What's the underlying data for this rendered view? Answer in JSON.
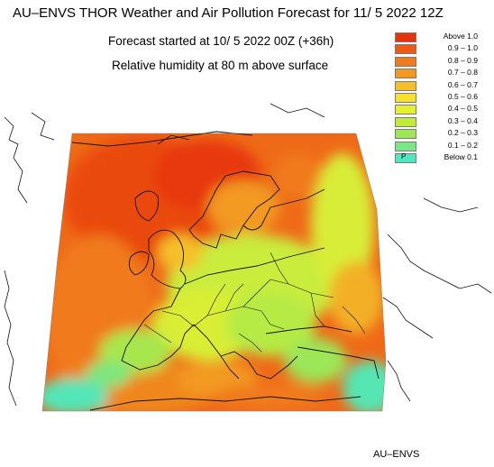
{
  "title": "AU–ENVS THOR Weather and Air Pollution Forecast for 11/ 5 2022  12Z",
  "subtitle_forecast": "Forecast started at 10/ 5 2022  00Z (+36h)",
  "subtitle_variable": "Relative humidity at 80 m above surface",
  "legend": [
    {
      "label": "Above   1.0",
      "color": "#e8320a"
    },
    {
      "label": "0.9 – 1.0",
      "color": "#ee5a14"
    },
    {
      "label": "0.8 – 0.9",
      "color": "#f07a1c"
    },
    {
      "label": "0.7 – 0.8",
      "color": "#f29a20"
    },
    {
      "label": "0.6 – 0.7",
      "color": "#f5bf2a"
    },
    {
      "label": "0.5 – 0.6",
      "color": "#f7e12c"
    },
    {
      "label": "0.4 – 0.5",
      "color": "#e6f02e"
    },
    {
      "label": "0.3 – 0.4",
      "color": "#c3ec3a"
    },
    {
      "label": "0.2 – 0.3",
      "color": "#9fe655"
    },
    {
      "label": "0.1 – 0.2",
      "color": "#7ae888"
    },
    {
      "label": "Below   0.1",
      "color": "#4fe6c0",
      "marker": "P"
    }
  ],
  "brand": "AU–ENVS"
}
